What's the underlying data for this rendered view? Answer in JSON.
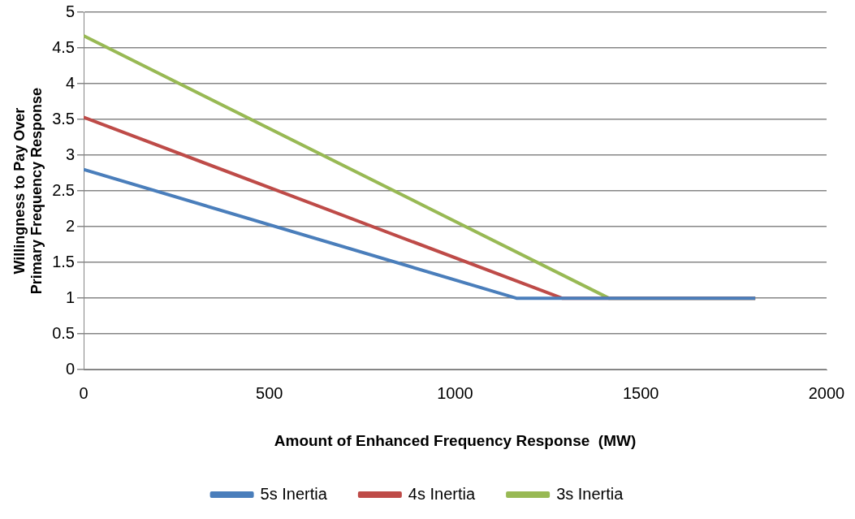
{
  "chart_data": {
    "type": "line",
    "xlabel": "Amount of Enhanced Frequency Response  (MW)",
    "ylabel": "Willingness to Pay Over Primary Frequency Response",
    "series": [
      {
        "name": "5s Inertia",
        "color": "#4a7ebb",
        "x": [
          0,
          1165,
          1808
        ],
        "values": [
          2.8,
          1,
          1
        ]
      },
      {
        "name": "4s Inertia",
        "color": "#be4b48",
        "x": [
          0,
          1288,
          1808
        ],
        "values": [
          3.53,
          1,
          1
        ]
      },
      {
        "name": "3s Inertia",
        "color": "#98b954",
        "x": [
          0,
          1414,
          1808
        ],
        "values": [
          4.67,
          1,
          1
        ]
      }
    ],
    "xlim": [
      0,
      2000
    ],
    "xticks": [
      0,
      500,
      1000,
      1500,
      2000
    ],
    "ylim": [
      0,
      5
    ],
    "yticks": [
      0,
      0.5,
      1,
      1.5,
      2,
      2.5,
      3,
      3.5,
      4,
      4.5,
      5
    ],
    "grid": "y",
    "legend": "bottom",
    "marker": "none",
    "line_style": "solid"
  }
}
